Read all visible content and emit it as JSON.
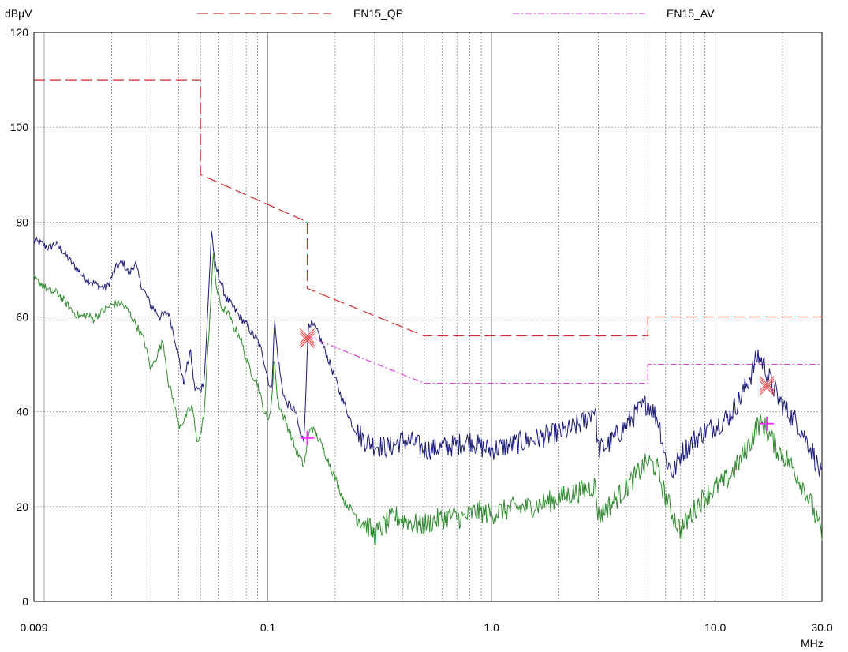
{
  "chart_data": {
    "type": "line",
    "ylabel": "dBµV",
    "xlabel": "MHz",
    "x_scale": "log",
    "xlim": [
      0.009,
      30.0
    ],
    "ylim": [
      0,
      120
    ],
    "grid": true,
    "legend_position": "top",
    "y_ticks": [
      {
        "value": 0,
        "label": "0"
      },
      {
        "value": 20,
        "label": "20"
      },
      {
        "value": 40,
        "label": "40"
      },
      {
        "value": 60,
        "label": "60"
      },
      {
        "value": 80,
        "label": "80"
      },
      {
        "value": 100,
        "label": "100"
      },
      {
        "value": 120,
        "label": "120"
      }
    ],
    "x_ticks": [
      {
        "value": 0.009,
        "label": "0.009"
      },
      {
        "value": 0.1,
        "label": "0.1"
      },
      {
        "value": 1.0,
        "label": "1.0"
      },
      {
        "value": 10.0,
        "label": "10.0"
      },
      {
        "value": 30.0,
        "label": "30.0"
      }
    ],
    "limit_lines": [
      {
        "name": "EN15_QP",
        "color": "#d42a2a",
        "dash": "long",
        "points": [
          [
            0.009,
            110
          ],
          [
            0.05,
            110
          ],
          [
            0.05,
            90
          ],
          [
            0.15,
            80
          ],
          [
            0.15,
            66
          ],
          [
            0.5,
            56
          ],
          [
            5,
            56
          ],
          [
            5,
            60
          ],
          [
            30,
            60
          ]
        ]
      },
      {
        "name": "EN15_AV",
        "color": "#e040e0",
        "dash": "dashdot",
        "points": [
          [
            0.15,
            56
          ],
          [
            0.5,
            46
          ],
          [
            5,
            46
          ],
          [
            5,
            50
          ],
          [
            30,
            50
          ]
        ]
      }
    ],
    "series": [
      {
        "color": "#1c1c7a",
        "points": [
          [
            0.009,
            76
          ],
          [
            0.0097,
            75.5
          ],
          [
            0.0105,
            74.5
          ],
          [
            0.0112,
            75.5
          ],
          [
            0.012,
            74
          ],
          [
            0.0135,
            71
          ],
          [
            0.015,
            68.5
          ],
          [
            0.0175,
            66.5
          ],
          [
            0.019,
            66
          ],
          [
            0.021,
            70.5
          ],
          [
            0.0225,
            71.5
          ],
          [
            0.024,
            69
          ],
          [
            0.0255,
            71.5
          ],
          [
            0.027,
            67
          ],
          [
            0.03,
            62.5
          ],
          [
            0.033,
            60
          ],
          [
            0.036,
            61
          ],
          [
            0.039,
            54
          ],
          [
            0.042,
            46
          ],
          [
            0.045,
            53
          ],
          [
            0.047,
            45
          ],
          [
            0.05,
            44.5
          ],
          [
            0.052,
            47
          ],
          [
            0.054,
            62
          ],
          [
            0.056,
            78.5
          ],
          [
            0.058,
            71
          ],
          [
            0.061,
            68
          ],
          [
            0.065,
            64
          ],
          [
            0.07,
            62
          ],
          [
            0.075,
            60
          ],
          [
            0.08,
            58.5
          ],
          [
            0.085,
            56.5
          ],
          [
            0.09,
            55
          ],
          [
            0.095,
            52
          ],
          [
            0.1,
            47
          ],
          [
            0.104,
            44
          ],
          [
            0.107,
            59.5
          ],
          [
            0.11,
            53
          ],
          [
            0.115,
            46
          ],
          [
            0.12,
            42
          ],
          [
            0.127,
            41
          ],
          [
            0.133,
            40
          ],
          [
            0.14,
            35
          ],
          [
            0.145,
            34
          ],
          [
            0.15,
            52
          ],
          [
            0.152,
            59
          ],
          [
            0.16,
            58
          ],
          [
            0.17,
            56
          ],
          [
            0.19,
            50
          ],
          [
            0.21,
            44
          ],
          [
            0.24,
            37
          ],
          [
            0.27,
            34
          ],
          [
            0.3,
            33
          ],
          [
            0.35,
            32.5
          ],
          [
            0.4,
            34
          ],
          [
            0.45,
            33.5
          ],
          [
            0.5,
            32
          ],
          [
            0.6,
            32.5
          ],
          [
            0.7,
            33
          ],
          [
            0.8,
            34
          ],
          [
            0.9,
            32.5
          ],
          [
            1.0,
            32
          ],
          [
            1.2,
            33
          ],
          [
            1.5,
            34
          ],
          [
            1.8,
            35
          ],
          [
            2.2,
            36
          ],
          [
            2.6,
            38
          ],
          [
            2.9,
            41
          ],
          [
            3.0,
            32
          ],
          [
            3.3,
            33
          ],
          [
            3.8,
            36
          ],
          [
            4.5,
            40
          ],
          [
            5.0,
            42
          ],
          [
            5.6,
            38
          ],
          [
            6.0,
            30
          ],
          [
            6.5,
            27
          ],
          [
            7.0,
            31
          ],
          [
            8.0,
            34
          ],
          [
            9.0,
            36
          ],
          [
            10.0,
            37
          ],
          [
            11.5,
            39
          ],
          [
            13.0,
            43
          ],
          [
            14.5,
            48
          ],
          [
            15.5,
            52
          ],
          [
            16.5,
            50
          ],
          [
            17.5,
            47
          ],
          [
            19.0,
            43
          ],
          [
            21.0,
            40
          ],
          [
            23.0,
            38
          ],
          [
            25.0,
            35
          ],
          [
            27.0,
            32
          ],
          [
            30.0,
            26
          ]
        ]
      },
      {
        "color": "#2e8b2e",
        "points": [
          [
            0.009,
            68
          ],
          [
            0.0097,
            67
          ],
          [
            0.0105,
            65.5
          ],
          [
            0.0115,
            65
          ],
          [
            0.0125,
            63
          ],
          [
            0.0135,
            61
          ],
          [
            0.0145,
            60
          ],
          [
            0.0155,
            60.5
          ],
          [
            0.0165,
            59.5
          ],
          [
            0.018,
            61
          ],
          [
            0.02,
            62.5
          ],
          [
            0.022,
            63
          ],
          [
            0.024,
            61
          ],
          [
            0.026,
            58
          ],
          [
            0.028,
            55
          ],
          [
            0.03,
            49
          ],
          [
            0.032,
            52
          ],
          [
            0.034,
            55
          ],
          [
            0.036,
            46
          ],
          [
            0.038,
            42
          ],
          [
            0.04,
            37
          ],
          [
            0.042,
            38
          ],
          [
            0.044,
            40
          ],
          [
            0.046,
            41
          ],
          [
            0.048,
            34
          ],
          [
            0.05,
            35
          ],
          [
            0.052,
            40
          ],
          [
            0.055,
            60
          ],
          [
            0.057,
            73
          ],
          [
            0.059,
            66
          ],
          [
            0.062,
            62
          ],
          [
            0.066,
            61
          ],
          [
            0.07,
            58
          ],
          [
            0.075,
            56
          ],
          [
            0.08,
            51
          ],
          [
            0.085,
            48
          ],
          [
            0.09,
            46
          ],
          [
            0.095,
            41
          ],
          [
            0.1,
            38
          ],
          [
            0.104,
            42
          ],
          [
            0.107,
            52
          ],
          [
            0.11,
            43
          ],
          [
            0.115,
            40
          ],
          [
            0.12,
            38
          ],
          [
            0.127,
            35
          ],
          [
            0.133,
            32
          ],
          [
            0.14,
            30
          ],
          [
            0.145,
            28.5
          ],
          [
            0.15,
            33
          ],
          [
            0.155,
            37
          ],
          [
            0.16,
            36
          ],
          [
            0.17,
            34
          ],
          [
            0.185,
            30
          ],
          [
            0.2,
            26
          ],
          [
            0.22,
            21
          ],
          [
            0.25,
            18
          ],
          [
            0.28,
            16
          ],
          [
            0.3,
            14
          ],
          [
            0.33,
            16
          ],
          [
            0.37,
            18
          ],
          [
            0.42,
            17
          ],
          [
            0.48,
            16
          ],
          [
            0.55,
            17
          ],
          [
            0.65,
            18
          ],
          [
            0.75,
            17.5
          ],
          [
            0.85,
            19
          ],
          [
            1.0,
            18.5
          ],
          [
            1.2,
            19.5
          ],
          [
            1.5,
            20
          ],
          [
            1.8,
            21
          ],
          [
            2.2,
            22.5
          ],
          [
            2.6,
            23.5
          ],
          [
            2.9,
            24.5
          ],
          [
            3.0,
            18
          ],
          [
            3.5,
            21
          ],
          [
            4.0,
            24
          ],
          [
            4.5,
            27
          ],
          [
            5.0,
            29.5
          ],
          [
            5.5,
            28
          ],
          [
            6.0,
            22
          ],
          [
            6.5,
            18
          ],
          [
            7.0,
            15
          ],
          [
            7.5,
            17
          ],
          [
            8.5,
            21
          ],
          [
            10.0,
            24
          ],
          [
            11.5,
            26
          ],
          [
            13.0,
            30
          ],
          [
            14.5,
            34
          ],
          [
            15.5,
            37.5
          ],
          [
            16.5,
            37
          ],
          [
            17.5,
            35
          ],
          [
            19.0,
            32
          ],
          [
            21.0,
            30
          ],
          [
            23.0,
            27
          ],
          [
            25.0,
            24
          ],
          [
            27.0,
            20
          ],
          [
            30.0,
            14
          ]
        ]
      }
    ],
    "markers": [
      {
        "shape": "x",
        "color": "#f05050",
        "x": 0.15,
        "y": 55.5
      },
      {
        "shape": "x",
        "color": "#f05050",
        "x": 17.0,
        "y": 45.5
      },
      {
        "shape": "plus",
        "color": "#ff33ff",
        "x": 0.15,
        "y": 34.5
      },
      {
        "shape": "plus",
        "color": "#ff33ff",
        "x": 17.0,
        "y": 37.5
      }
    ]
  }
}
